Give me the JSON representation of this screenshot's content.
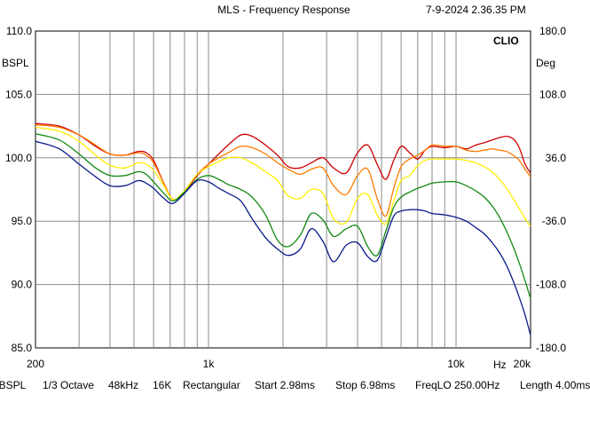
{
  "header": {
    "title": "MLS - Frequency Response",
    "timestamp": "7-9-2024 2.36.35 PM",
    "brand": "CLIO"
  },
  "axes": {
    "left_unit": "BSPL",
    "right_unit": "Deg",
    "x_unit": "Hz"
  },
  "footer": {
    "unit": "dBSPL",
    "smoothing": "1/3 Octave",
    "sample_rate": "48kHz",
    "size": "16K",
    "window": "Rectangular",
    "start": "Start 2.98ms",
    "stop": "Stop 6.98ms",
    "freqlo": "FreqLO 250.00Hz",
    "length": "Length 4.00ms"
  },
  "chart_data": {
    "type": "line",
    "title": "MLS - Frequency Response",
    "xscale": "log",
    "xlim": [
      200,
      20000
    ],
    "ylim": [
      85,
      110
    ],
    "y2lim": [
      -180,
      180
    ],
    "ylabel": "BSPL",
    "y2label": "Deg",
    "xlabel": "Hz",
    "grid": true,
    "x_ticks": [
      {
        "value": 200,
        "label": "200"
      },
      {
        "value": 1000,
        "label": "1k"
      },
      {
        "value": 10000,
        "label": "10k"
      },
      {
        "value": 20000,
        "label": "20k"
      }
    ],
    "y_ticks": [
      {
        "value": 110,
        "label": "110.0"
      },
      {
        "value": 105,
        "label": "105.0"
      },
      {
        "value": 100,
        "label": "100.0"
      },
      {
        "value": 95,
        "label": "95.0"
      },
      {
        "value": 90,
        "label": "90.0"
      },
      {
        "value": 85,
        "label": "85.0"
      }
    ],
    "y2_ticks": [
      {
        "value": 180,
        "label": "180.0"
      },
      {
        "value": 108,
        "label": "108.0"
      },
      {
        "value": 36,
        "label": "36.0"
      },
      {
        "value": -36,
        "label": "-36.0"
      },
      {
        "value": -108,
        "label": "-108.0"
      },
      {
        "value": -180,
        "label": "-180.0"
      }
    ],
    "series": [
      {
        "color": "#cc0000",
        "x": [
          200,
          250,
          300,
          350,
          400,
          460,
          520,
          560,
          600,
          660,
          720,
          800,
          900,
          1000,
          1100,
          1200,
          1350,
          1500,
          1700,
          1900,
          2100,
          2350,
          2600,
          2900,
          3200,
          3600,
          4000,
          4400,
          4800,
          5200,
          5600,
          6000,
          6500,
          7000,
          7500,
          8000,
          9000,
          10000,
          11000,
          12000,
          13000,
          14000,
          15000,
          16000,
          17000,
          18000,
          19000,
          20000
        ],
        "y": [
          102.7,
          102.5,
          101.8,
          100.9,
          100.3,
          100.2,
          100.5,
          100.4,
          99.8,
          98.0,
          96.7,
          97.3,
          98.6,
          99.5,
          100.3,
          101.0,
          101.8,
          101.7,
          101.0,
          100.2,
          99.3,
          99.2,
          99.6,
          100.0,
          99.2,
          98.8,
          100.4,
          101.0,
          99.5,
          98.3,
          99.8,
          100.9,
          100.4,
          99.9,
          100.6,
          100.9,
          100.8,
          100.9,
          100.7,
          101.0,
          101.2,
          101.4,
          101.6,
          101.7,
          101.5,
          100.8,
          99.5,
          98.8
        ]
      },
      {
        "color": "#ff7a00",
        "x": [
          200,
          250,
          300,
          350,
          400,
          460,
          520,
          560,
          600,
          660,
          720,
          800,
          900,
          1000,
          1100,
          1200,
          1350,
          1500,
          1700,
          1900,
          2100,
          2350,
          2600,
          2900,
          3200,
          3600,
          4000,
          4400,
          4800,
          5200,
          5600,
          6000,
          6500,
          7000,
          7500,
          8000,
          9000,
          10000,
          11000,
          12000,
          13000,
          14000,
          15000,
          16000,
          17000,
          18000,
          19000,
          20000
        ],
        "y": [
          102.6,
          102.4,
          101.8,
          101.0,
          100.3,
          100.2,
          100.4,
          100.2,
          99.6,
          98.0,
          96.7,
          97.4,
          98.7,
          99.5,
          100.0,
          100.4,
          100.9,
          100.8,
          100.3,
          99.6,
          99.1,
          98.7,
          99.1,
          99.2,
          97.8,
          97.1,
          98.6,
          99.1,
          96.8,
          95.4,
          97.6,
          99.3,
          99.9,
          100.2,
          100.6,
          101.0,
          100.9,
          100.9,
          100.6,
          100.5,
          100.6,
          100.7,
          100.6,
          100.5,
          100.2,
          99.8,
          99.1,
          98.5
        ]
      },
      {
        "color": "#ffee00",
        "x": [
          200,
          250,
          300,
          350,
          400,
          460,
          520,
          560,
          600,
          660,
          720,
          800,
          900,
          1000,
          1100,
          1200,
          1350,
          1500,
          1700,
          1900,
          2100,
          2350,
          2600,
          2900,
          3200,
          3600,
          4000,
          4400,
          4800,
          5200,
          5600,
          6000,
          6500,
          7000,
          7500,
          8000,
          9000,
          10000,
          11000,
          12000,
          13000,
          14000,
          15000,
          16000,
          17000,
          18000,
          19000,
          20000
        ],
        "y": [
          102.4,
          102.1,
          101.3,
          100.2,
          99.4,
          99.2,
          99.6,
          99.5,
          99.0,
          97.8,
          96.7,
          97.4,
          98.7,
          99.3,
          99.7,
          100.0,
          100.0,
          99.6,
          98.9,
          98.2,
          97.0,
          96.8,
          97.5,
          97.2,
          95.2,
          94.9,
          96.8,
          97.1,
          95.5,
          94.8,
          96.6,
          98.2,
          98.6,
          99.4,
          99.8,
          99.9,
          99.9,
          99.9,
          99.8,
          99.6,
          99.3,
          98.9,
          98.3,
          97.6,
          96.8,
          96.0,
          95.2,
          94.6
        ]
      },
      {
        "color": "#118811",
        "x": [
          200,
          250,
          300,
          350,
          400,
          460,
          520,
          560,
          600,
          660,
          720,
          800,
          900,
          1000,
          1100,
          1200,
          1350,
          1500,
          1700,
          1900,
          2100,
          2350,
          2600,
          2900,
          3200,
          3600,
          4000,
          4400,
          4800,
          5200,
          5600,
          6000,
          6500,
          7000,
          7500,
          8000,
          9000,
          10000,
          11000,
          12000,
          13000,
          14000,
          15000,
          16000,
          17000,
          18000,
          19000,
          20000
        ],
        "y": [
          101.9,
          101.4,
          100.3,
          99.2,
          98.6,
          98.6,
          98.9,
          98.7,
          98.1,
          97.2,
          96.6,
          97.3,
          98.3,
          98.6,
          98.3,
          97.9,
          97.5,
          96.9,
          95.5,
          93.5,
          93.0,
          93.9,
          95.6,
          95.1,
          93.8,
          94.4,
          94.6,
          93.0,
          92.3,
          94.2,
          96.1,
          96.9,
          97.3,
          97.6,
          97.8,
          98.0,
          98.1,
          98.1,
          97.8,
          97.4,
          96.9,
          96.2,
          95.3,
          94.2,
          93.0,
          91.7,
          90.3,
          88.9
        ]
      },
      {
        "color": "#0a1a8a",
        "x": [
          200,
          250,
          300,
          350,
          400,
          460,
          520,
          560,
          600,
          660,
          720,
          800,
          900,
          1000,
          1100,
          1200,
          1350,
          1500,
          1700,
          1900,
          2100,
          2350,
          2600,
          2900,
          3200,
          3600,
          4000,
          4400,
          4800,
          5200,
          5600,
          6000,
          6500,
          7000,
          7500,
          8000,
          9000,
          10000,
          11000,
          12000,
          13000,
          14000,
          15000,
          16000,
          17000,
          18000,
          19000,
          20000
        ],
        "y": [
          101.3,
          100.7,
          99.5,
          98.5,
          97.8,
          97.8,
          98.2,
          98.0,
          97.6,
          96.8,
          96.4,
          97.2,
          98.2,
          98.1,
          97.6,
          97.2,
          96.6,
          95.2,
          93.7,
          92.8,
          92.3,
          92.8,
          94.4,
          93.4,
          91.8,
          93.1,
          93.3,
          92.2,
          91.9,
          93.7,
          95.4,
          95.8,
          95.9,
          95.9,
          95.8,
          95.6,
          95.5,
          95.3,
          95.0,
          94.5,
          94.0,
          93.3,
          92.5,
          91.5,
          90.3,
          89.0,
          87.6,
          86.0
        ]
      }
    ]
  }
}
